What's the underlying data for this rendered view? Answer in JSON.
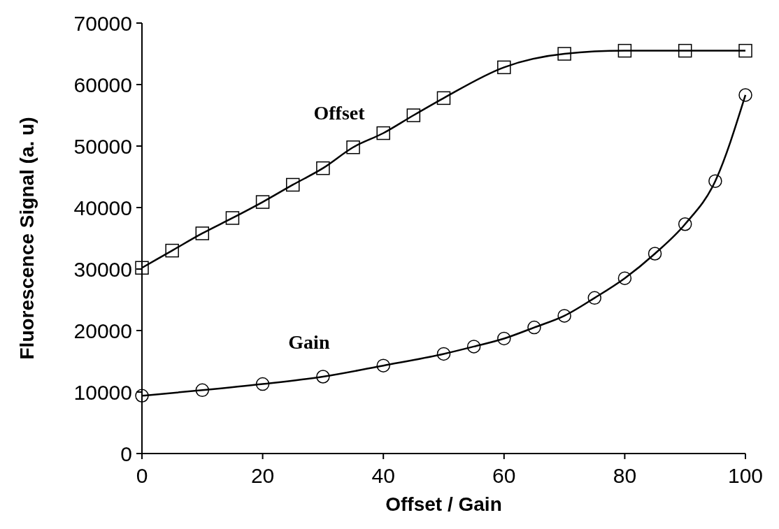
{
  "chart_data": {
    "type": "line",
    "xlabel": "Offset / Gain",
    "ylabel": "Fluorescence Signal (a. u)",
    "xlim": [
      0,
      100
    ],
    "xticks": [
      0,
      20,
      40,
      60,
      80,
      100
    ],
    "ylim": [
      0,
      70000
    ],
    "yticks": [
      0,
      10000,
      20000,
      30000,
      40000,
      50000,
      60000,
      70000
    ],
    "grid": false,
    "line_style": "solid",
    "series": [
      {
        "name": "Offset",
        "color": "#000000",
        "marker": "square",
        "x": [
          0,
          5,
          10,
          15,
          20,
          25,
          30,
          35,
          40,
          45,
          50,
          60,
          70,
          80,
          90,
          100
        ],
        "values": [
          30200,
          33000,
          35800,
          38300,
          40900,
          43700,
          46400,
          49800,
          52100,
          55000,
          57800,
          62800,
          65000,
          65500,
          65500,
          65500
        ]
      },
      {
        "name": "Gain",
        "color": "#000000",
        "marker": "circle",
        "x": [
          0,
          10,
          20,
          30,
          40,
          50,
          55,
          60,
          65,
          70,
          75,
          80,
          85,
          90,
          95,
          100
        ],
        "values": [
          9400,
          10300,
          11300,
          12500,
          14300,
          16200,
          17400,
          18700,
          20500,
          22400,
          25300,
          28500,
          32500,
          37300,
          44300,
          58300
        ]
      }
    ]
  }
}
